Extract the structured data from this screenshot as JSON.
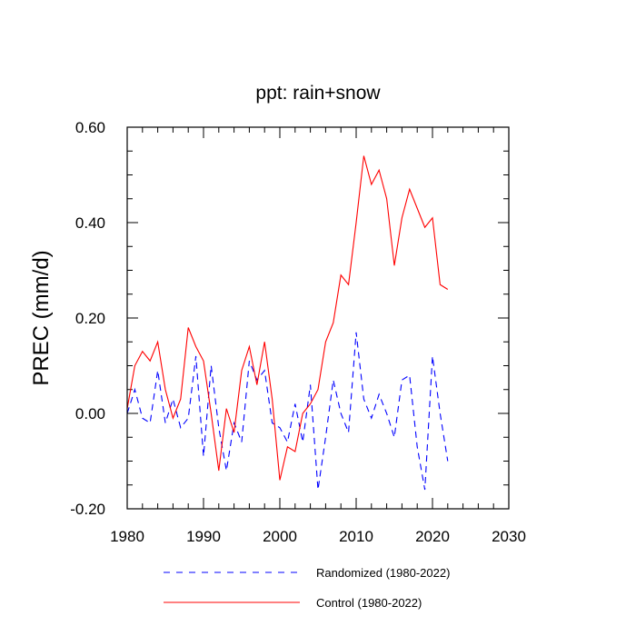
{
  "chart_data": {
    "type": "line",
    "title": "ppt: rain+snow",
    "ylabel": "PREC  (mm/d)",
    "xlabel": "",
    "xlim": [
      1980,
      2030
    ],
    "ylim": [
      -0.2,
      0.6
    ],
    "xticks": [
      1980,
      1990,
      2000,
      2010,
      2020,
      2030
    ],
    "xtick_labels": [
      "1980",
      "1990",
      "2000",
      "2010",
      "2020",
      "2030"
    ],
    "yticks": [
      -0.2,
      0.0,
      0.2,
      0.4,
      0.6
    ],
    "ytick_labels": [
      "-0.20",
      "0.00",
      "0.20",
      "0.40",
      "0.60"
    ],
    "legend_position": "bottom",
    "x": [
      1980,
      1981,
      1982,
      1983,
      1984,
      1985,
      1986,
      1987,
      1988,
      1989,
      1990,
      1991,
      1992,
      1993,
      1994,
      1995,
      1996,
      1997,
      1998,
      1999,
      2000,
      2001,
      2002,
      2003,
      2004,
      2005,
      2006,
      2007,
      2008,
      2009,
      2010,
      2011,
      2012,
      2013,
      2014,
      2015,
      2016,
      2017,
      2018,
      2019,
      2020,
      2021,
      2022
    ],
    "series": [
      {
        "name": "Randomized (1980-2022)",
        "color": "#0000ff",
        "style": "dashed",
        "values": [
          0.0,
          0.05,
          -0.01,
          -0.02,
          0.09,
          -0.02,
          0.03,
          -0.03,
          -0.01,
          0.12,
          -0.09,
          0.1,
          -0.03,
          -0.12,
          -0.02,
          -0.06,
          0.11,
          0.07,
          0.09,
          -0.02,
          -0.03,
          -0.06,
          0.02,
          -0.06,
          0.06,
          -0.16,
          -0.05,
          0.07,
          0.0,
          -0.04,
          0.17,
          0.03,
          -0.01,
          0.04,
          0.0,
          -0.05,
          0.07,
          0.08,
          -0.07,
          -0.16,
          0.12,
          0.0,
          -0.1
        ]
      },
      {
        "name": "Control (1980-2022)",
        "color": "#ff0000",
        "style": "solid",
        "values": [
          0.01,
          0.1,
          0.13,
          0.11,
          0.15,
          0.05,
          -0.01,
          0.03,
          0.18,
          0.14,
          0.11,
          0.0,
          -0.12,
          0.01,
          -0.04,
          0.09,
          0.14,
          0.06,
          0.15,
          0.03,
          -0.14,
          -0.07,
          -0.08,
          0.0,
          0.02,
          0.05,
          0.15,
          0.19,
          0.29,
          0.27,
          0.4,
          0.54,
          0.48,
          0.51,
          0.45,
          0.31,
          0.41,
          0.47,
          0.43,
          0.39,
          0.41,
          0.27,
          0.26
        ]
      }
    ]
  }
}
